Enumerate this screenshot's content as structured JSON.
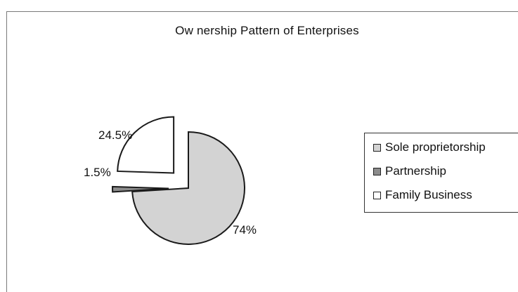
{
  "chart_data": {
    "type": "pie",
    "title": "Ow nership Pattern of Enterprises",
    "categories": [
      "Sole proprietorship",
      "Partnership",
      "Family Business"
    ],
    "values": [
      74,
      1.5,
      24.5
    ],
    "data_labels": [
      "74%",
      "1.5%",
      "24.5%"
    ],
    "colors": [
      "#d3d3d3",
      "#8c8c8c",
      "#ffffff"
    ],
    "exploded": true,
    "legend_position": "right",
    "grid": false
  }
}
